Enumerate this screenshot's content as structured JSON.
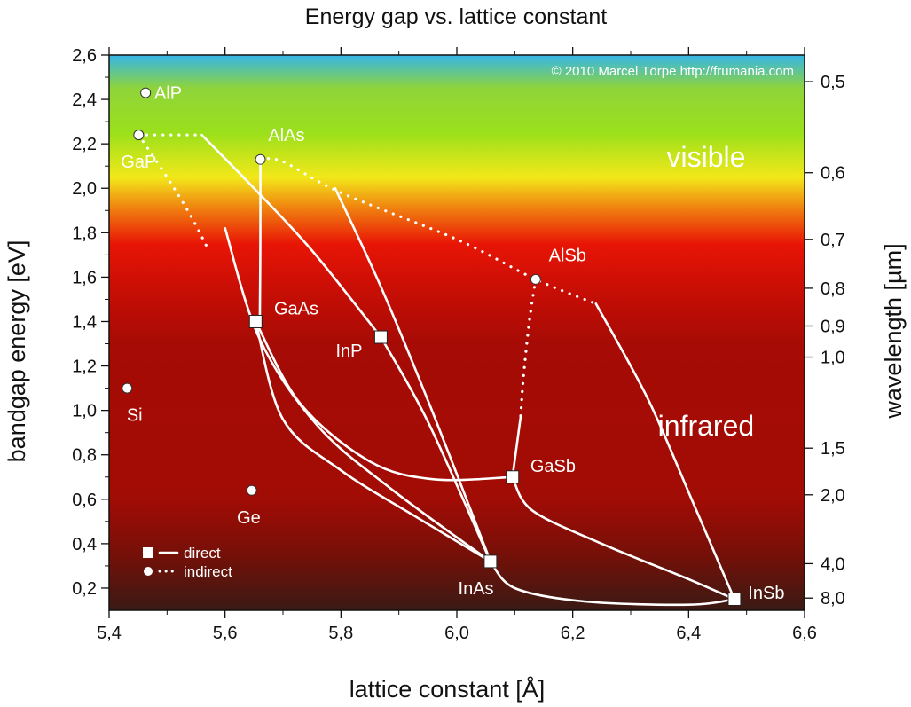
{
  "chart_data": {
    "type": "scatter",
    "title": "Energy gap vs. lattice constant",
    "xlabel": "lattice constant [Å]",
    "ylabel": "bandgap energy [eV]",
    "y2label": "wavelength [µm]",
    "copyright": "© 2010 Marcel Törpe http://frumania.com",
    "xlim": [
      5.4,
      6.6
    ],
    "ylim": [
      0.1,
      2.6
    ],
    "x_ticks": [
      "5,4",
      "5,6",
      "5,8",
      "6,0",
      "6,2",
      "6,4",
      "6,6"
    ],
    "y_ticks": [
      "0,2",
      "0,4",
      "0,6",
      "0,8",
      "1,0",
      "1,2",
      "1,4",
      "1,6",
      "1,8",
      "2,0",
      "2,2",
      "2,4",
      "2,6"
    ],
    "y2_ticks": [
      {
        "label": "0,5",
        "energy": 2.48
      },
      {
        "label": "0,6",
        "energy": 2.07
      },
      {
        "label": "0,7",
        "energy": 1.77
      },
      {
        "label": "0,8",
        "energy": 1.55
      },
      {
        "label": "0,9",
        "energy": 1.38
      },
      {
        "label": "1,0",
        "energy": 1.24
      },
      {
        "label": "1,5",
        "energy": 0.83
      },
      {
        "label": "2,0",
        "energy": 0.62
      },
      {
        "label": "4,0",
        "energy": 0.31
      },
      {
        "label": "8,0",
        "energy": 0.155
      }
    ],
    "region_labels": [
      {
        "text": "visible",
        "x": 6.43,
        "y": 2.14
      },
      {
        "text": "infrared",
        "x": 6.43,
        "y": 0.93
      }
    ],
    "background_gradient": [
      {
        "energy": 2.6,
        "color": "#35b5ea"
      },
      {
        "energy": 2.45,
        "color": "#8fd43a"
      },
      {
        "energy": 2.25,
        "color": "#9be01b"
      },
      {
        "energy": 2.05,
        "color": "#f2e81a"
      },
      {
        "energy": 1.9,
        "color": "#f07a0f"
      },
      {
        "energy": 1.75,
        "color": "#e81505"
      },
      {
        "energy": 1.55,
        "color": "#c90e05"
      },
      {
        "energy": 1.3,
        "color": "#a60b05"
      },
      {
        "energy": 0.6,
        "color": "#a10c05"
      },
      {
        "energy": 0.35,
        "color": "#751008"
      },
      {
        "energy": 0.1,
        "color": "#3a1a14"
      }
    ],
    "points": [
      {
        "name": "AlP",
        "x": 5.463,
        "y": 2.43,
        "marker": "circle",
        "label_dx": 0.015,
        "label_dy": 0.0,
        "anchor": "start"
      },
      {
        "name": "GaP",
        "x": 5.451,
        "y": 2.24,
        "marker": "circle",
        "label_dx": 0.0,
        "label_dy": -0.12,
        "anchor": "middle"
      },
      {
        "name": "AlAs",
        "x": 5.661,
        "y": 2.13,
        "marker": "circle",
        "label_dx": 0.045,
        "label_dy": 0.11,
        "anchor": "middle"
      },
      {
        "name": "AlSb",
        "x": 6.136,
        "y": 1.59,
        "marker": "circle",
        "label_dx": 0.055,
        "label_dy": 0.11,
        "anchor": "middle"
      },
      {
        "name": "Si",
        "x": 5.431,
        "y": 1.1,
        "marker": "circle",
        "label_dx": 0.013,
        "label_dy": -0.12,
        "anchor": "middle"
      },
      {
        "name": "Ge",
        "x": 5.646,
        "y": 0.64,
        "marker": "circle",
        "label_dx": -0.005,
        "label_dy": -0.12,
        "anchor": "middle"
      },
      {
        "name": "GaAs",
        "x": 5.653,
        "y": 1.4,
        "marker": "square",
        "label_dx": 0.07,
        "label_dy": 0.06,
        "anchor": "middle"
      },
      {
        "name": "InP",
        "x": 5.869,
        "y": 1.33,
        "marker": "square",
        "label_dx": -0.055,
        "label_dy": -0.06,
        "anchor": "middle"
      },
      {
        "name": "GaSb",
        "x": 6.096,
        "y": 0.7,
        "marker": "square",
        "label_dx": 0.07,
        "label_dy": 0.05,
        "anchor": "middle"
      },
      {
        "name": "InAs",
        "x": 6.058,
        "y": 0.32,
        "marker": "square",
        "label_dx": -0.025,
        "label_dy": -0.12,
        "anchor": "middle"
      },
      {
        "name": "InSb",
        "x": 6.479,
        "y": 0.15,
        "marker": "square",
        "label_dx": 0.055,
        "label_dy": 0.03,
        "anchor": "middle"
      }
    ],
    "curves": [
      {
        "name": "GaP-AlP",
        "style": "dotted",
        "points": [
          [
            5.451,
            2.24
          ],
          [
            5.5,
            2.24
          ],
          [
            5.56,
            2.24
          ]
        ]
      },
      {
        "name": "GaP-GaAs",
        "style": "dotted",
        "points": [
          [
            5.451,
            2.24
          ],
          [
            5.5,
            2.05
          ],
          [
            5.54,
            1.88
          ],
          [
            5.57,
            1.73
          ]
        ]
      },
      {
        "name": "AlAs-AlSb",
        "style": "dotted",
        "points": [
          [
            5.661,
            2.13
          ],
          [
            5.7,
            2.12
          ],
          [
            5.8,
            1.98
          ],
          [
            6.0,
            1.77
          ],
          [
            6.136,
            1.59
          ],
          [
            6.24,
            1.48
          ]
        ]
      },
      {
        "name": "AlSb-GaSb",
        "style": "dotted",
        "points": [
          [
            6.136,
            1.59
          ],
          [
            6.125,
            1.4
          ],
          [
            6.115,
            1.15
          ],
          [
            6.11,
            0.97
          ]
        ]
      },
      {
        "name": "AlAs-GaAs",
        "style": "solid",
        "points": [
          [
            5.661,
            2.13
          ],
          [
            5.661,
            1.77
          ],
          [
            5.66,
            1.4
          ]
        ]
      },
      {
        "name": "AlP-InP",
        "style": "solid",
        "points": [
          [
            5.56,
            2.24
          ],
          [
            5.65,
            2.0
          ],
          [
            5.75,
            1.72
          ],
          [
            5.869,
            1.33
          ]
        ]
      },
      {
        "name": "InP-InAs",
        "style": "solid",
        "points": [
          [
            5.869,
            1.33
          ],
          [
            5.95,
            0.95
          ],
          [
            6.058,
            0.32
          ]
        ]
      },
      {
        "name": "AlP-InAs",
        "style": "solid",
        "points": [
          [
            5.79,
            2.0
          ],
          [
            5.87,
            1.55
          ],
          [
            5.96,
            0.98
          ],
          [
            6.058,
            0.32
          ]
        ]
      },
      {
        "name": "GaP-InAs",
        "style": "solid",
        "points": [
          [
            5.6,
            1.82
          ],
          [
            5.66,
            1.32
          ],
          [
            5.76,
            0.93
          ],
          [
            5.89,
            0.64
          ],
          [
            6.058,
            0.32
          ]
        ]
      },
      {
        "name": "GaAs-InAs",
        "style": "solid",
        "points": [
          [
            5.653,
            1.4
          ],
          [
            5.7,
            0.96
          ],
          [
            5.8,
            0.73
          ],
          [
            5.93,
            0.52
          ],
          [
            6.058,
            0.32
          ]
        ]
      },
      {
        "name": "GaAs-GaSb",
        "style": "solid",
        "points": [
          [
            5.653,
            1.4
          ],
          [
            5.73,
            1.03
          ],
          [
            5.85,
            0.77
          ],
          [
            5.96,
            0.69
          ],
          [
            6.096,
            0.7
          ]
        ]
      },
      {
        "name": "GaSb-InSb",
        "style": "solid",
        "points": [
          [
            6.096,
            0.7
          ],
          [
            6.13,
            0.55
          ],
          [
            6.25,
            0.4
          ],
          [
            6.4,
            0.24
          ],
          [
            6.479,
            0.15
          ]
        ]
      },
      {
        "name": "InAs-InSb",
        "style": "solid",
        "points": [
          [
            6.058,
            0.32
          ],
          [
            6.1,
            0.2
          ],
          [
            6.22,
            0.14
          ],
          [
            6.4,
            0.125
          ],
          [
            6.479,
            0.15
          ]
        ]
      },
      {
        "name": "AlSb-InSb",
        "style": "solid",
        "points": [
          [
            6.24,
            1.48
          ],
          [
            6.33,
            1.05
          ],
          [
            6.41,
            0.57
          ],
          [
            6.479,
            0.15
          ]
        ]
      },
      {
        "name": "GaSb-stub",
        "style": "solid",
        "points": [
          [
            6.096,
            0.7
          ],
          [
            6.11,
            0.97
          ]
        ]
      }
    ],
    "legend": [
      {
        "marker": "square",
        "line": "solid",
        "label": "direct"
      },
      {
        "marker": "circle",
        "line": "dotted",
        "label": "indirect"
      }
    ],
    "legend_position": "bottom-left"
  }
}
